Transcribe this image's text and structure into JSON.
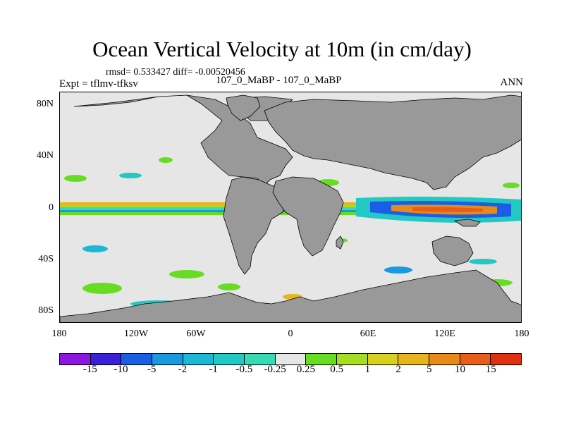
{
  "plot": {
    "title": "Ocean Vertical Velocity at 10m (in cm/day)",
    "stats": "rmsd= 0.533427 diff= -0.00520456",
    "expt": "Expt = tflmv-tfksv",
    "cases": "107_0_MaBP - 107_0_MaBP",
    "season": "ANN"
  },
  "axes": {
    "y_ticks": [
      "80N",
      "40N",
      "0",
      "40S",
      "80S"
    ],
    "x_ticks": [
      "180",
      "120W",
      "60W",
      "0",
      "60E",
      "120E",
      "180"
    ]
  },
  "colorbar": {
    "colors": [
      "#8a16e0",
      "#3a20d8",
      "#1b5ee6",
      "#1899e0",
      "#1ab7d6",
      "#22c9c2",
      "#38d9b6",
      "#e6e6e6",
      "#66dd22",
      "#a6dd22",
      "#d8d020",
      "#e6b41c",
      "#e88a18",
      "#e85e16",
      "#e03010"
    ],
    "labels": [
      "-15",
      "-10",
      "-5",
      "-2",
      "-1",
      "-0.5",
      "-0.25",
      "0.25",
      "0.5",
      "1",
      "2",
      "5",
      "10",
      "15"
    ]
  },
  "colors": {
    "land": "#999999",
    "ocean_neutral": "#e6e6e6"
  }
}
